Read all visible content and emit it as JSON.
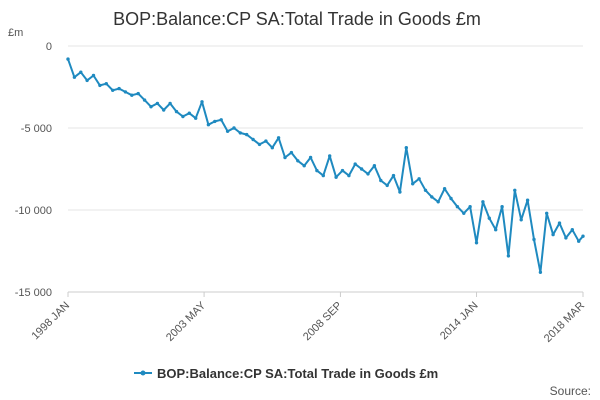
{
  "chart_data": {
    "type": "line",
    "title": "BOP:Balance:CP SA:Total Trade in Goods £m",
    "ylabel": "£m",
    "xlabel": "",
    "ylim": [
      -15000,
      0
    ],
    "yticks": [
      0,
      -5000,
      -10000,
      -15000
    ],
    "ytick_labels": [
      "0",
      "-5 000",
      "-10 000",
      "-15 000"
    ],
    "xlim": [
      1998.0,
      2018.17
    ],
    "xticks": [
      {
        "label": "1998 JAN",
        "x": 1998.0
      },
      {
        "label": "2003 MAY",
        "x": 2003.33
      },
      {
        "label": "2008 SEP",
        "x": 2008.67
      },
      {
        "label": "2014 JAN",
        "x": 2014.0
      },
      {
        "label": "2018 MAR",
        "x": 2018.17
      }
    ],
    "grid": true,
    "legend_position": "bottom-center",
    "series": [
      {
        "name": "BOP:Balance:CP SA:Total Trade in Goods £m",
        "color": "#1f8ac0",
        "x": [
          1998.0,
          1998.25,
          1998.5,
          1998.75,
          1999.0,
          1999.25,
          1999.5,
          1999.75,
          2000.0,
          2000.25,
          2000.5,
          2000.75,
          2001.0,
          2001.25,
          2001.5,
          2001.75,
          2002.0,
          2002.25,
          2002.5,
          2002.75,
          2003.0,
          2003.25,
          2003.5,
          2003.75,
          2004.0,
          2004.25,
          2004.5,
          2004.75,
          2005.0,
          2005.25,
          2005.5,
          2005.75,
          2006.0,
          2006.25,
          2006.5,
          2006.75,
          2007.0,
          2007.25,
          2007.5,
          2007.75,
          2008.0,
          2008.25,
          2008.5,
          2008.75,
          2009.0,
          2009.25,
          2009.5,
          2009.75,
          2010.0,
          2010.25,
          2010.5,
          2010.75,
          2011.0,
          2011.25,
          2011.5,
          2011.75,
          2012.0,
          2012.25,
          2012.5,
          2012.75,
          2013.0,
          2013.25,
          2013.5,
          2013.75,
          2014.0,
          2014.25,
          2014.5,
          2014.75,
          2015.0,
          2015.25,
          2015.5,
          2015.75,
          2016.0,
          2016.25,
          2016.5,
          2016.75,
          2017.0,
          2017.25,
          2017.5,
          2017.75,
          2018.0,
          2018.17
        ],
        "values": [
          -800,
          -1900,
          -1600,
          -2100,
          -1800,
          -2400,
          -2300,
          -2700,
          -2600,
          -2800,
          -3000,
          -2900,
          -3300,
          -3700,
          -3500,
          -3900,
          -3500,
          -4000,
          -4300,
          -4100,
          -4400,
          -3400,
          -4800,
          -4600,
          -4500,
          -5200,
          -5000,
          -5300,
          -5400,
          -5700,
          -6000,
          -5800,
          -6200,
          -5600,
          -6800,
          -6500,
          -7000,
          -7300,
          -6800,
          -7600,
          -7900,
          -6700,
          -8000,
          -7600,
          -7900,
          -7200,
          -7500,
          -7800,
          -7300,
          -8200,
          -8500,
          -7900,
          -8900,
          -6200,
          -8400,
          -8100,
          -8800,
          -9200,
          -9500,
          -8700,
          -9300,
          -9800,
          -10200,
          -9800,
          -12000,
          -9500,
          -10500,
          -11200,
          -9800,
          -12800,
          -8800,
          -10600,
          -9400,
          -11800,
          -13800,
          -10200,
          -11500,
          -10800,
          -11700,
          -11200,
          -11900,
          -11600
        ]
      }
    ]
  },
  "legend": {
    "label": "BOP:Balance:CP SA:Total Trade in Goods £m"
  },
  "source_label": "Source:"
}
